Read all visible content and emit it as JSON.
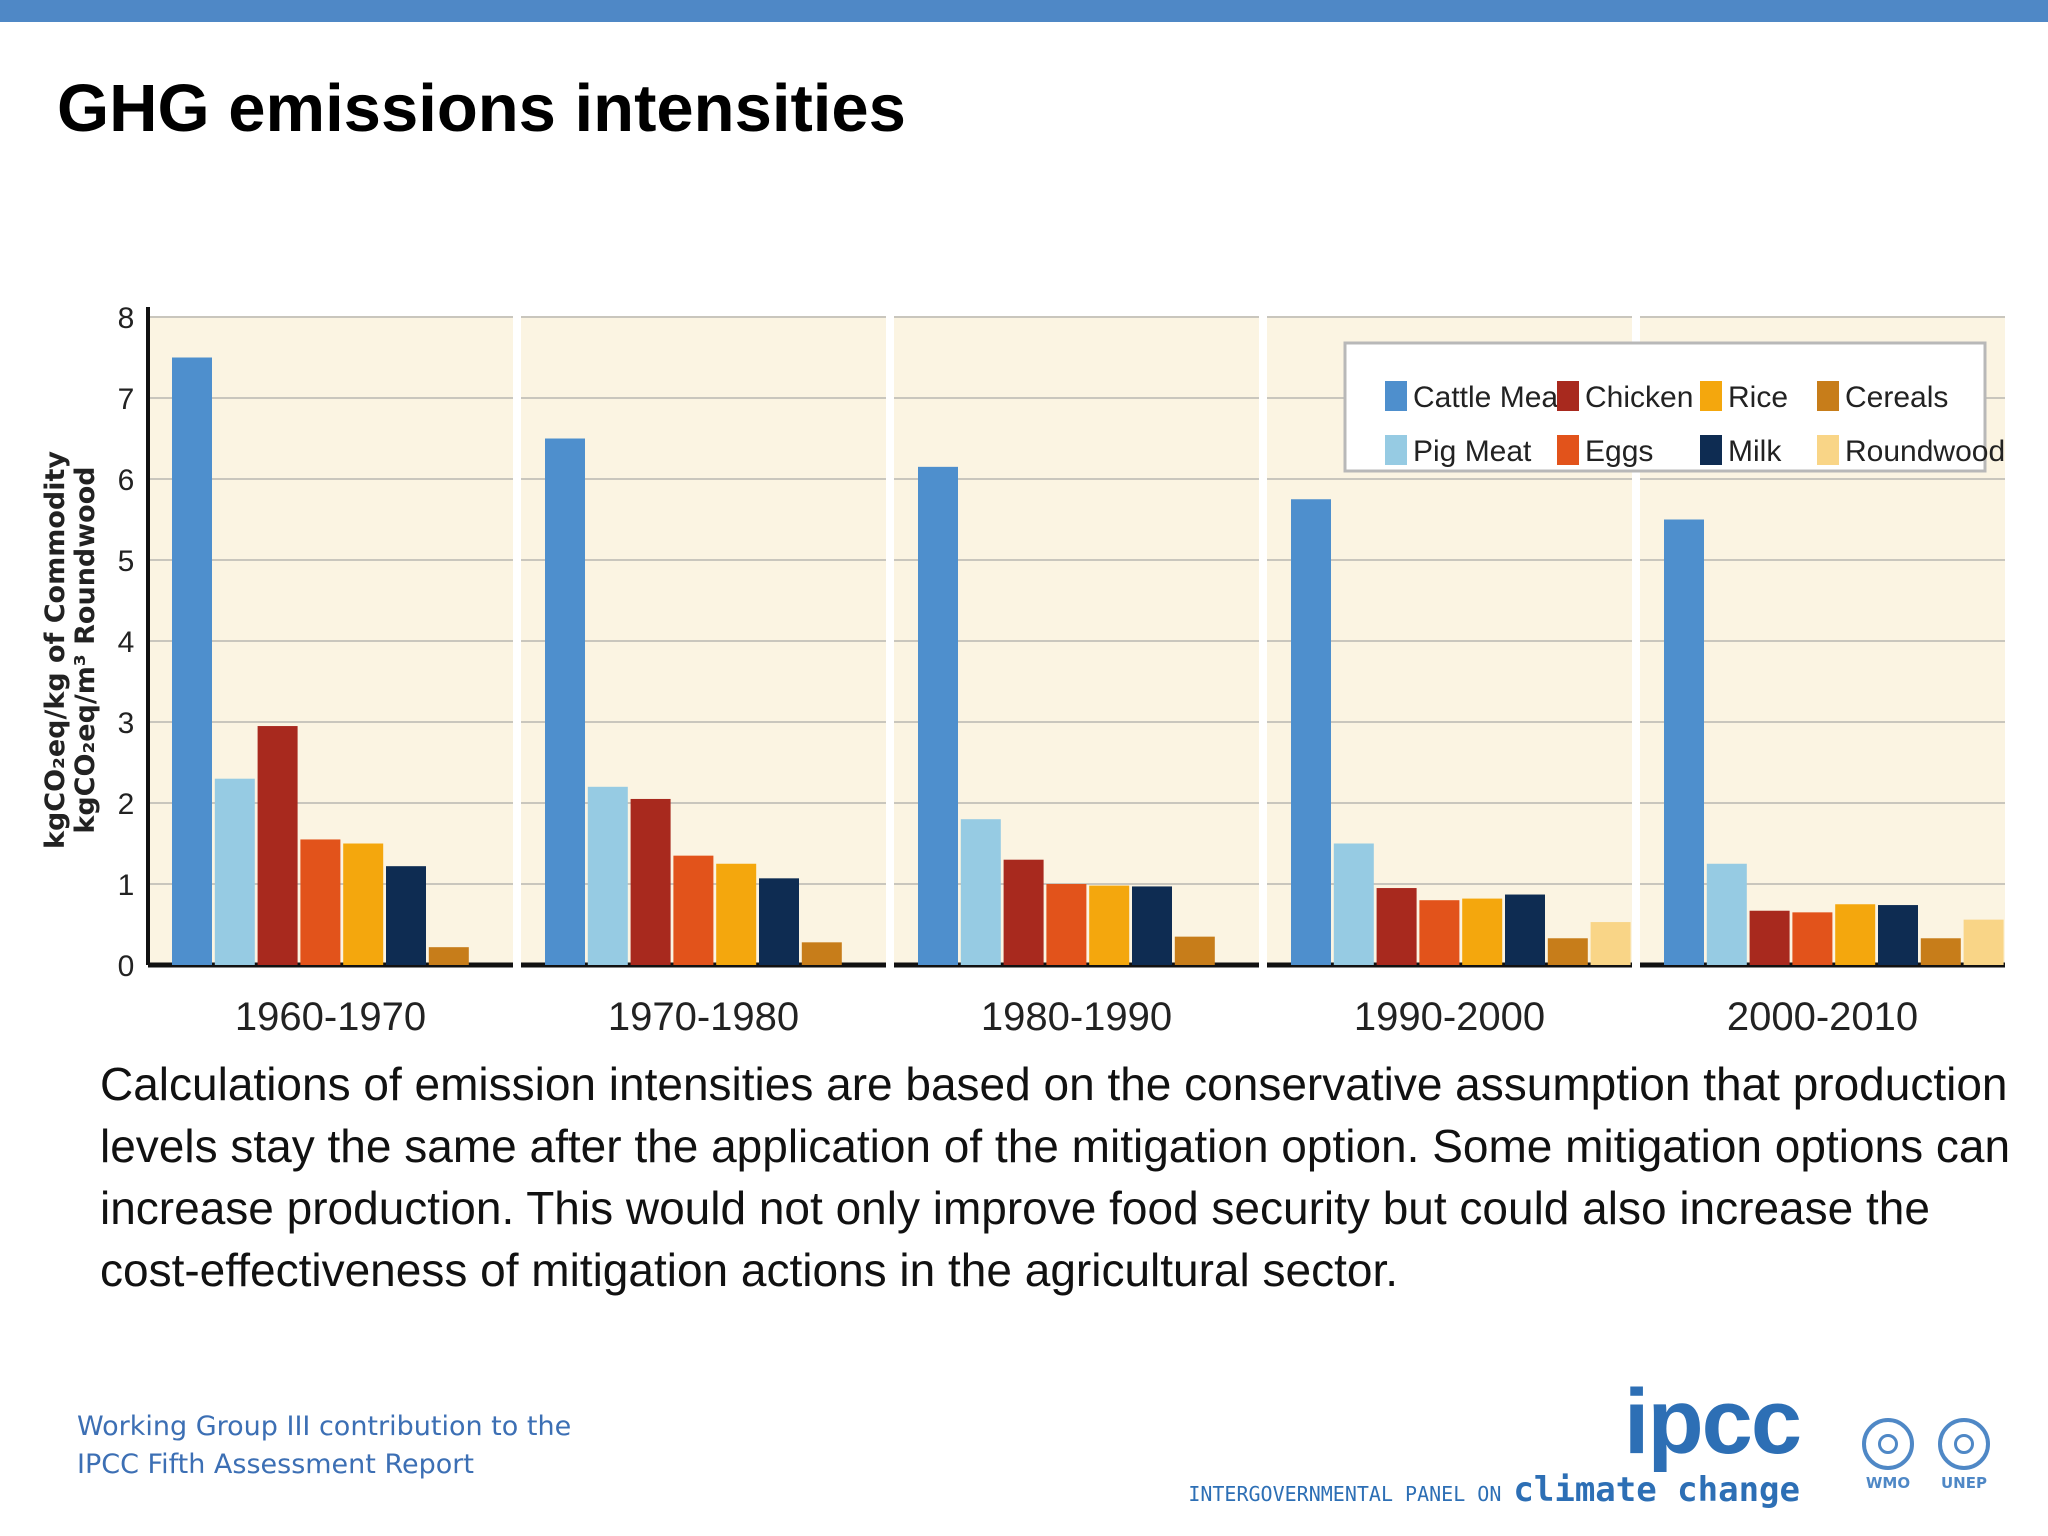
{
  "slide": {
    "title": "GHG emissions intensities",
    "caption": "Calculations of emission intensities are based on the conservative assumption that production levels stay the same after the application of the mitigation option. Some mitigation options can increase production. This would not only improve food security but could also increase the cost-effectiveness of mitigation actions in the agricultural sector.",
    "footer_line1": "Working Group III contribution to the",
    "footer_line2": "IPCC Fifth Assessment Report"
  },
  "logos": {
    "ipcc_word": "ipcc",
    "ipcc_sub_prefix": "INTERGOVERNMENTAL PANEL ON ",
    "ipcc_sub_cc": "climate change",
    "wmo": "WMO",
    "unep": "UNEP"
  },
  "chart_data": {
    "type": "bar",
    "title": "",
    "xlabel": "",
    "ylabel_line1": "kgCO₂eq/kg of Commodity",
    "ylabel_line2": "kgCO₂eq/m³ Roundwood",
    "ylim": [
      0,
      8
    ],
    "yticks": [
      0,
      1,
      2,
      3,
      4,
      5,
      6,
      7,
      8
    ],
    "grid": true,
    "legend_position": "top-right",
    "categories": [
      "1960-1970",
      "1970-1980",
      "1980-1990",
      "1990-2000",
      "2000-2010"
    ],
    "series": [
      {
        "name": "Cattle Meat",
        "color": "#4e8fcd",
        "values": [
          7.5,
          6.5,
          6.15,
          5.75,
          5.5
        ]
      },
      {
        "name": "Pig Meat",
        "color": "#96cbe3",
        "values": [
          2.3,
          2.2,
          1.8,
          1.5,
          1.25
        ]
      },
      {
        "name": "Chicken",
        "color": "#a8291e",
        "values": [
          2.95,
          2.05,
          1.3,
          0.95,
          0.67
        ]
      },
      {
        "name": "Eggs",
        "color": "#e2531b",
        "values": [
          1.55,
          1.35,
          1.0,
          0.8,
          0.65
        ]
      },
      {
        "name": "Rice",
        "color": "#f4a70d",
        "values": [
          1.5,
          1.25,
          0.98,
          0.82,
          0.75
        ]
      },
      {
        "name": "Milk",
        "color": "#0e2c52",
        "values": [
          1.22,
          1.07,
          0.97,
          0.87,
          0.74
        ]
      },
      {
        "name": "Cereals",
        "color": "#c77d1a",
        "values": [
          0.22,
          0.28,
          0.35,
          0.33,
          0.33
        ]
      },
      {
        "name": "Roundwood",
        "color": "#f9d587",
        "values": [
          null,
          null,
          null,
          0.53,
          0.56
        ]
      }
    ],
    "legend_rows": [
      [
        "Cattle Meat",
        "Chicken",
        "Rice",
        "Cereals"
      ],
      [
        "Pig Meat",
        "Eggs",
        "Milk",
        "Roundwood"
      ]
    ]
  }
}
